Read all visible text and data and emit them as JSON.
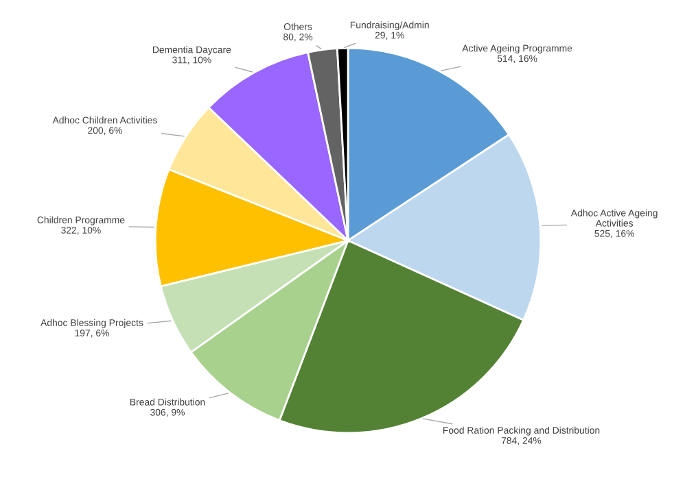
{
  "chart_data": {
    "type": "pie",
    "categories": [
      "Active Ageing Programme",
      "Adhoc Active Ageing\nActivities",
      "Food Ration Packing and Distribution",
      "Bread Distribution",
      "Adhoc Blessing Projects",
      "Children Programme",
      "Adhoc Children Activities",
      "Dementia Daycare",
      "Others",
      "Fundraising/Admin"
    ],
    "values": [
      514,
      525,
      784,
      306,
      197,
      322,
      200,
      311,
      80,
      29
    ],
    "value_labels": [
      "514, 16%",
      "525, 16%",
      "784, 24%",
      "306, 9%",
      "197, 6%",
      "322, 10%",
      "200, 6%",
      "311, 10%",
      "80, 2%",
      "29, 1%"
    ],
    "colors": [
      "#5b9bd5",
      "#bdd7ee",
      "#548235",
      "#a9d18e",
      "#c5e0b4",
      "#ffc000",
      "#ffe699",
      "#9966ff",
      "#636363",
      "#000000"
    ],
    "legend": false
  }
}
